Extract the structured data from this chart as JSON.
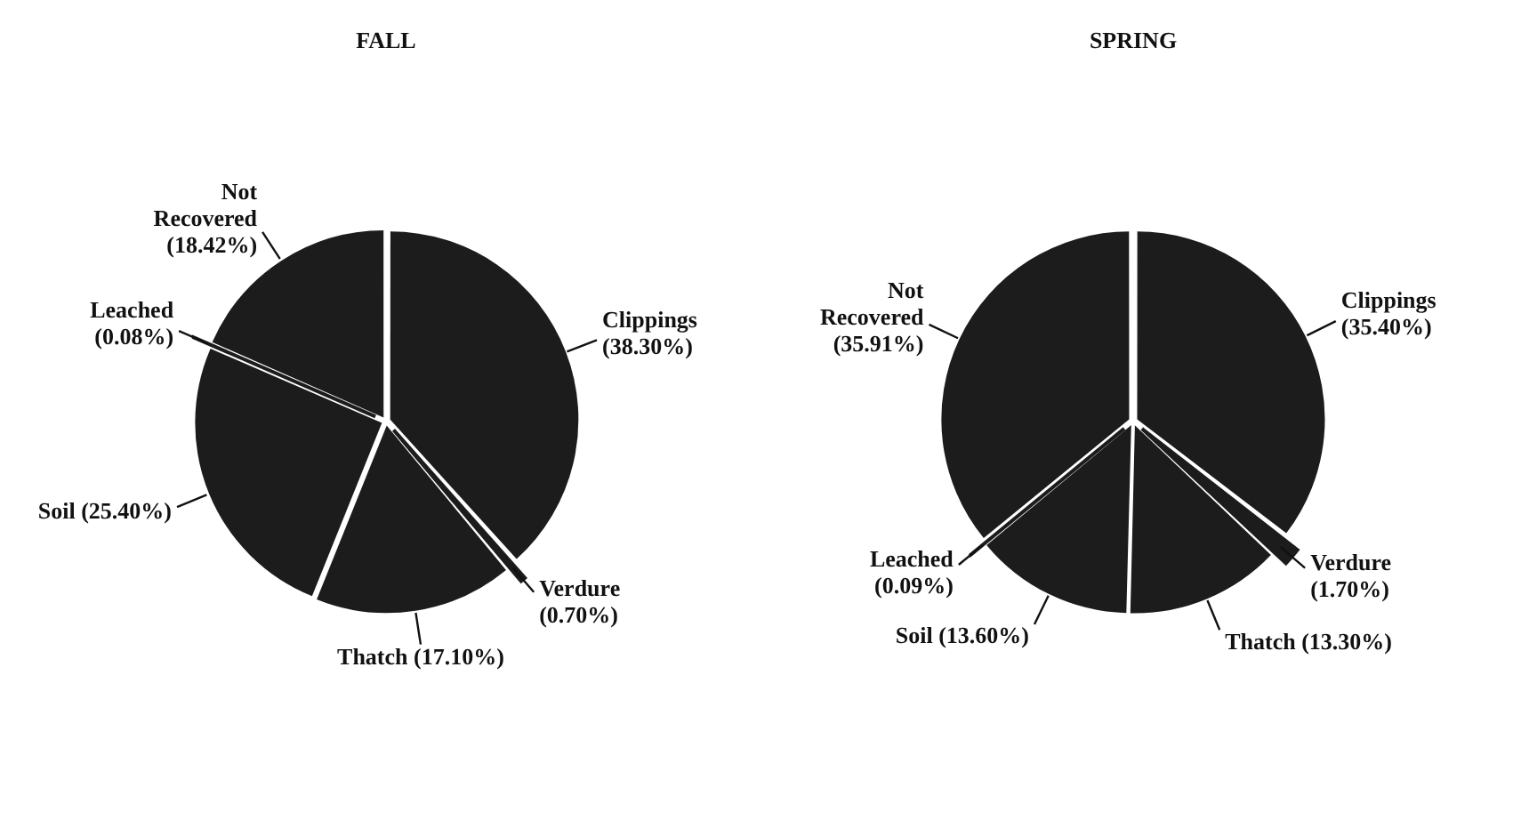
{
  "chart_data": [
    {
      "type": "pie",
      "title": "FALL",
      "categories": [
        "Clippings (38.30%)",
        "Verdure (0.70%)",
        "Thatch (17.10%)",
        "Soil (25.40%)",
        "Leached (0.08%)",
        "Not Recovered (18.42%)"
      ],
      "values": [
        38.3,
        0.7,
        17.1,
        25.4,
        0.08,
        18.42
      ],
      "colors": [
        "#1c1c1c",
        "#1c1c1c",
        "#1c1c1c",
        "#1c1c1c",
        "#1c1c1c",
        "#1c1c1c"
      ],
      "legend": false
    },
    {
      "type": "pie",
      "title": "SPRING",
      "categories": [
        "Clippings (35.40%)",
        "Verdure (1.70%)",
        "Thatch (13.30%)",
        "Soil (13.60%)",
        "Leached (0.09%)",
        "Not Recovered (35.91%)"
      ],
      "values": [
        35.4,
        1.7,
        13.3,
        13.6,
        0.09,
        35.91
      ],
      "colors": [
        "#1c1c1c",
        "#1c1c1c",
        "#1c1c1c",
        "#1c1c1c",
        "#1c1c1c",
        "#1c1c1c"
      ],
      "legend": false
    }
  ]
}
